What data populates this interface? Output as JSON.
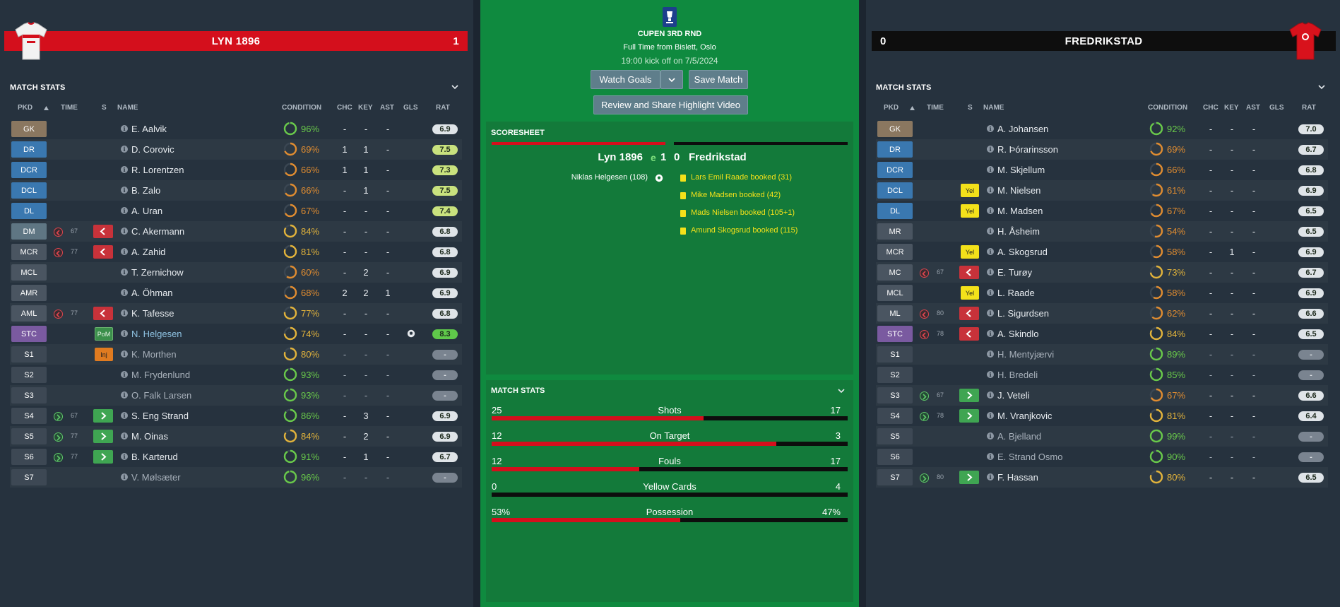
{
  "home": {
    "name": "LYN 1896",
    "score": "1",
    "section_title": "MATCH STATS",
    "headers": {
      "pkd": "PKD",
      "time": "TIME",
      "s": "S",
      "name": "NAME",
      "condition": "CONDITION",
      "chc": "CHC",
      "key": "KEY",
      "ast": "AST",
      "gls": "GLS",
      "rat": "RAT"
    },
    "players": [
      {
        "pos": "GK",
        "name": "E. Aalvik",
        "cond": "96%",
        "cond_frac": 0.96,
        "chc": "-",
        "key": "-",
        "ast": "-",
        "gls": "",
        "rat": "6.9"
      },
      {
        "pos": "DR",
        "name": "D. Corovic",
        "cond": "69%",
        "cond_frac": 0.69,
        "chc": "1",
        "key": "1",
        "ast": "-",
        "gls": "",
        "rat": "7.5"
      },
      {
        "pos": "DCR",
        "name": "R. Lorentzen",
        "cond": "66%",
        "cond_frac": 0.66,
        "chc": "1",
        "key": "1",
        "ast": "-",
        "gls": "",
        "rat": "7.3"
      },
      {
        "pos": "DCL",
        "name": "B. Zalo",
        "cond": "66%",
        "cond_frac": 0.66,
        "chc": "-",
        "key": "1",
        "ast": "-",
        "gls": "",
        "rat": "7.5"
      },
      {
        "pos": "DL",
        "name": "A. Uran",
        "cond": "67%",
        "cond_frac": 0.67,
        "chc": "-",
        "key": "-",
        "ast": "-",
        "gls": "",
        "rat": "7.4"
      },
      {
        "pos": "DM",
        "name": "C. Akermann",
        "cond": "84%",
        "cond_frac": 0.84,
        "chc": "-",
        "key": "-",
        "ast": "-",
        "gls": "",
        "rat": "6.8",
        "sub": "off",
        "min": "67"
      },
      {
        "pos": "MCR",
        "name": "A. Zahid",
        "cond": "81%",
        "cond_frac": 0.81,
        "chc": "-",
        "key": "-",
        "ast": "-",
        "gls": "",
        "rat": "6.8",
        "sub": "off",
        "min": "77"
      },
      {
        "pos": "MCL",
        "name": "T. Zernichow",
        "cond": "60%",
        "cond_frac": 0.6,
        "chc": "-",
        "key": "2",
        "ast": "-",
        "gls": "",
        "rat": "6.9"
      },
      {
        "pos": "AMR",
        "name": "A. Öhman",
        "cond": "68%",
        "cond_frac": 0.68,
        "chc": "2",
        "key": "2",
        "ast": "1",
        "gls": "",
        "rat": "6.9"
      },
      {
        "pos": "AML",
        "name": "K. Tafesse",
        "cond": "77%",
        "cond_frac": 0.77,
        "chc": "-",
        "key": "-",
        "ast": "-",
        "gls": "",
        "rat": "6.8",
        "sub": "off",
        "min": "77"
      },
      {
        "pos": "STC",
        "name": "N. Helgesen",
        "cond": "74%",
        "cond_frac": 0.74,
        "chc": "-",
        "key": "-",
        "ast": "-",
        "gls": "ball",
        "rat": "8.3",
        "badge": "PoM"
      },
      {
        "pos": "S1",
        "name": "K. Morthen",
        "cond": "80%",
        "cond_frac": 0.8,
        "chc": "-",
        "key": "-",
        "ast": "-",
        "gls": "",
        "rat": "-",
        "badge": "Inj",
        "bench": true
      },
      {
        "pos": "S2",
        "name": "M. Frydenlund",
        "cond": "93%",
        "cond_frac": 0.93,
        "chc": "-",
        "key": "-",
        "ast": "-",
        "gls": "",
        "rat": "-",
        "bench": true
      },
      {
        "pos": "S3",
        "name": "O. Falk Larsen",
        "cond": "93%",
        "cond_frac": 0.93,
        "chc": "-",
        "key": "-",
        "ast": "-",
        "gls": "",
        "rat": "-",
        "bench": true
      },
      {
        "pos": "S4",
        "name": "S. Eng Strand",
        "cond": "86%",
        "cond_frac": 0.86,
        "chc": "-",
        "key": "3",
        "ast": "-",
        "gls": "",
        "rat": "6.9",
        "sub": "on",
        "min": "67"
      },
      {
        "pos": "S5",
        "name": "M. Oinas",
        "cond": "84%",
        "cond_frac": 0.84,
        "chc": "-",
        "key": "2",
        "ast": "-",
        "gls": "",
        "rat": "6.9",
        "sub": "on",
        "min": "77"
      },
      {
        "pos": "S6",
        "name": "B. Karterud",
        "cond": "91%",
        "cond_frac": 0.91,
        "chc": "-",
        "key": "1",
        "ast": "-",
        "gls": "",
        "rat": "6.7",
        "sub": "on",
        "min": "77"
      },
      {
        "pos": "S7",
        "name": "V. Mølsæter",
        "cond": "96%",
        "cond_frac": 0.96,
        "chc": "-",
        "key": "-",
        "ast": "-",
        "gls": "",
        "rat": "-",
        "bench": true
      }
    ]
  },
  "away": {
    "name": "FREDRIKSTAD",
    "score": "0",
    "section_title": "MATCH STATS",
    "headers": {
      "pkd": "PKD",
      "time": "TIME",
      "s": "S",
      "name": "NAME",
      "condition": "CONDITION",
      "chc": "CHC",
      "key": "KEY",
      "ast": "AST",
      "gls": "GLS",
      "rat": "RAT"
    },
    "players": [
      {
        "pos": "GK",
        "name": "A. Johansen",
        "cond": "92%",
        "cond_frac": 0.92,
        "chc": "-",
        "key": "-",
        "ast": "-",
        "gls": "",
        "rat": "7.0"
      },
      {
        "pos": "DR",
        "name": "R. Þórarinsson",
        "cond": "69%",
        "cond_frac": 0.69,
        "chc": "-",
        "key": "-",
        "ast": "-",
        "gls": "",
        "rat": "6.7"
      },
      {
        "pos": "DCR",
        "name": "M. Skjellum",
        "cond": "66%",
        "cond_frac": 0.66,
        "chc": "-",
        "key": "-",
        "ast": "-",
        "gls": "",
        "rat": "6.8"
      },
      {
        "pos": "DCL",
        "name": "M. Nielsen",
        "cond": "61%",
        "cond_frac": 0.61,
        "chc": "-",
        "key": "-",
        "ast": "-",
        "gls": "",
        "rat": "6.9",
        "badge": "Yel"
      },
      {
        "pos": "DL",
        "name": "M. Madsen",
        "cond": "67%",
        "cond_frac": 0.67,
        "chc": "-",
        "key": "-",
        "ast": "-",
        "gls": "",
        "rat": "6.5",
        "badge": "Yel"
      },
      {
        "pos": "MR",
        "name": "H. Åsheim",
        "cond": "54%",
        "cond_frac": 0.54,
        "chc": "-",
        "key": "-",
        "ast": "-",
        "gls": "",
        "rat": "6.5"
      },
      {
        "pos": "MCR",
        "name": "A. Skogsrud",
        "cond": "58%",
        "cond_frac": 0.58,
        "chc": "-",
        "key": "1",
        "ast": "-",
        "gls": "",
        "rat": "6.9",
        "badge": "Yel"
      },
      {
        "pos": "MC",
        "name": "E. Turøy",
        "cond": "73%",
        "cond_frac": 0.73,
        "chc": "-",
        "key": "-",
        "ast": "-",
        "gls": "",
        "rat": "6.7",
        "sub": "off",
        "min": "67"
      },
      {
        "pos": "MCL",
        "name": "L. Raade",
        "cond": "58%",
        "cond_frac": 0.58,
        "chc": "-",
        "key": "-",
        "ast": "-",
        "gls": "",
        "rat": "6.9",
        "badge": "Yel"
      },
      {
        "pos": "ML",
        "name": "L. Sigurdsen",
        "cond": "62%",
        "cond_frac": 0.62,
        "chc": "-",
        "key": "-",
        "ast": "-",
        "gls": "",
        "rat": "6.6",
        "sub": "off",
        "min": "80"
      },
      {
        "pos": "STC",
        "name": "A. Skindlo",
        "cond": "84%",
        "cond_frac": 0.84,
        "chc": "-",
        "key": "-",
        "ast": "-",
        "gls": "",
        "rat": "6.5",
        "sub": "off",
        "min": "78"
      },
      {
        "pos": "S1",
        "name": "H. Mentyjærvi",
        "cond": "89%",
        "cond_frac": 0.89,
        "chc": "-",
        "key": "-",
        "ast": "-",
        "gls": "",
        "rat": "-",
        "bench": true
      },
      {
        "pos": "S2",
        "name": "H. Bredeli",
        "cond": "85%",
        "cond_frac": 0.85,
        "chc": "-",
        "key": "-",
        "ast": "-",
        "gls": "",
        "rat": "-",
        "bench": true
      },
      {
        "pos": "S3",
        "name": "J. Veteli",
        "cond": "67%",
        "cond_frac": 0.67,
        "chc": "-",
        "key": "-",
        "ast": "-",
        "gls": "",
        "rat": "6.6",
        "sub": "on",
        "min": "67"
      },
      {
        "pos": "S4",
        "name": "M. Vranjkovic",
        "cond": "81%",
        "cond_frac": 0.81,
        "chc": "-",
        "key": "-",
        "ast": "-",
        "gls": "",
        "rat": "6.4",
        "sub": "on",
        "min": "78"
      },
      {
        "pos": "S5",
        "name": "A. Bjelland",
        "cond": "99%",
        "cond_frac": 0.99,
        "chc": "-",
        "key": "-",
        "ast": "-",
        "gls": "",
        "rat": "-",
        "bench": true
      },
      {
        "pos": "S6",
        "name": "E. Strand Osmo",
        "cond": "90%",
        "cond_frac": 0.9,
        "chc": "-",
        "key": "-",
        "ast": "-",
        "gls": "",
        "rat": "-",
        "bench": true
      },
      {
        "pos": "S7",
        "name": "F. Hassan",
        "cond": "80%",
        "cond_frac": 0.8,
        "chc": "-",
        "key": "-",
        "ast": "-",
        "gls": "",
        "rat": "6.5",
        "sub": "on",
        "min": "80"
      }
    ]
  },
  "center": {
    "competition": "CUPEN 3RD RND",
    "full_time": "Full Time from Bislett, Oslo",
    "kickoff": "19:00 kick off on 7/5/2024",
    "watch_goals_label": "Watch Goals",
    "save_match_label": "Save Match",
    "review_label": "Review and Share Highlight Video",
    "scoresheet_title": "SCORESHEET",
    "home_name": "Lyn 1896",
    "away_name": "Fredrikstad",
    "home_score": "1",
    "away_score": "0",
    "extra_marker": "e",
    "home_events": [
      "Niklas Helgesen (108)"
    ],
    "away_events": [
      "Lars Emil Raade booked (31)",
      "Mike Madsen booked (42)",
      "Mads Nielsen booked (105+1)",
      "Amund Skogsrud booked (115)"
    ],
    "match_stats_title": "MATCH STATS",
    "stats": [
      {
        "label": "Shots",
        "home": "25",
        "away": "17",
        "home_frac": 0.595
      },
      {
        "label": "On Target",
        "home": "12",
        "away": "3",
        "home_frac": 0.8
      },
      {
        "label": "Fouls",
        "home": "12",
        "away": "17",
        "home_frac": 0.414
      },
      {
        "label": "Yellow Cards",
        "home": "0",
        "away": "4",
        "home_frac": 0
      },
      {
        "label": "Possession",
        "home": "53%",
        "away": "47%",
        "home_frac": 0.53
      }
    ]
  },
  "colors": {
    "home_red": "#d40f1c",
    "away_black": "#0e0e0e",
    "pitch_green": "#0f8a3f",
    "yellow_card": "#f3e11a"
  }
}
